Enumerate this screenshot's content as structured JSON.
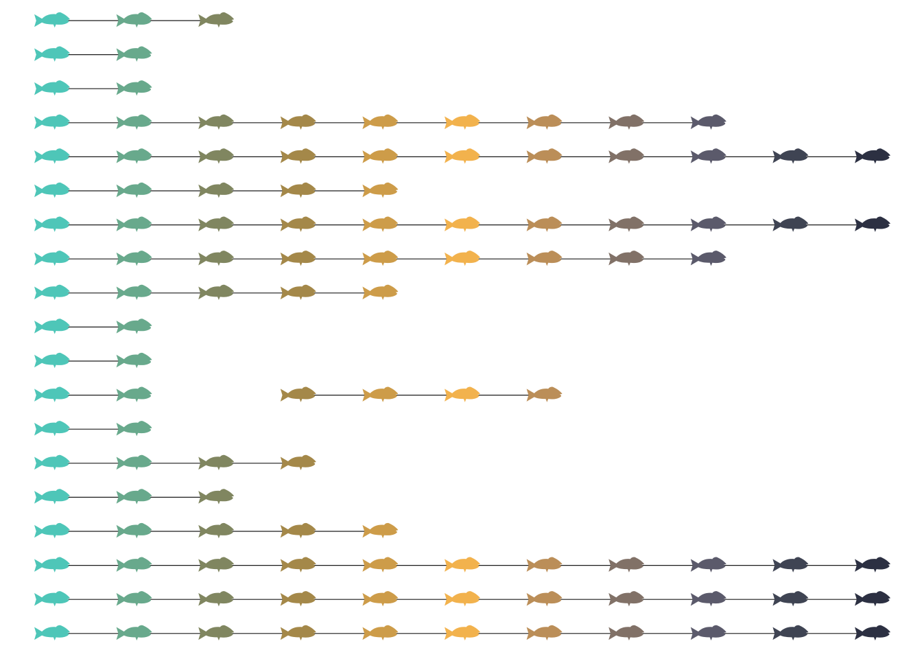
{
  "chart_data": {
    "type": "scatter",
    "marker": "fish-icon",
    "title": "",
    "xlabel": "",
    "ylabel": "",
    "xlim": [
      1,
      11
    ],
    "grid": false,
    "legend": "none",
    "colors": [
      "#4ec6b8",
      "#68a98c",
      "#808660",
      "#a48849",
      "#cd9c49",
      "#f2b24d",
      "#bb8e58",
      "#817167",
      "#5b5a6b",
      "#3f4453",
      "#2c3042"
    ],
    "rows": [
      {
        "present": [
          1,
          2,
          3
        ]
      },
      {
        "present": [
          1,
          2
        ]
      },
      {
        "present": [
          1,
          2
        ]
      },
      {
        "present": [
          1,
          2,
          3,
          4,
          5,
          6,
          7,
          8,
          9
        ]
      },
      {
        "present": [
          1,
          2,
          3,
          4,
          5,
          6,
          7,
          8,
          9,
          10,
          11
        ]
      },
      {
        "present": [
          1,
          2,
          3,
          4,
          5
        ]
      },
      {
        "present": [
          1,
          2,
          3,
          4,
          5,
          6,
          7,
          8,
          9,
          10,
          11
        ]
      },
      {
        "present": [
          1,
          2,
          3,
          4,
          5,
          6,
          7,
          8,
          9
        ]
      },
      {
        "present": [
          1,
          2,
          3,
          4,
          5
        ]
      },
      {
        "present": [
          1,
          2
        ]
      },
      {
        "present": [
          1,
          2
        ]
      },
      {
        "present": [
          1,
          2,
          4,
          5,
          6,
          7
        ]
      },
      {
        "present": [
          1,
          2
        ]
      },
      {
        "present": [
          1,
          2,
          3,
          4
        ]
      },
      {
        "present": [
          1,
          2,
          3
        ]
      },
      {
        "present": [
          1,
          2,
          3,
          4,
          5
        ]
      },
      {
        "present": [
          1,
          2,
          3,
          4,
          5,
          6,
          7,
          8,
          9,
          10,
          11
        ]
      },
      {
        "present": [
          1,
          2,
          3,
          4,
          5,
          6,
          7,
          8,
          9,
          10,
          11
        ]
      },
      {
        "present": [
          1,
          2,
          3,
          4,
          5,
          6,
          7,
          8,
          9,
          10,
          11
        ]
      }
    ]
  }
}
